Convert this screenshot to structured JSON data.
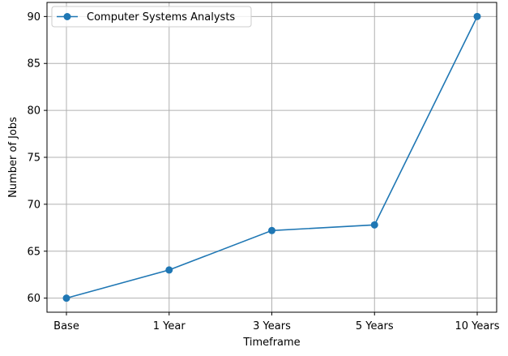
{
  "chart_data": {
    "type": "line",
    "title": "",
    "xlabel": "Timeframe",
    "ylabel": "Number of Jobs",
    "categories": [
      "Base",
      "1 Year",
      "3 Years",
      "5 Years",
      "10 Years"
    ],
    "series": [
      {
        "name": "Computer Systems Analysts",
        "values": [
          60,
          63,
          67.2,
          67.8,
          90
        ],
        "color": "#1f77b4",
        "marker": "circle"
      }
    ],
    "ylim": [
      58.5,
      91.5
    ],
    "yticks": [
      60,
      65,
      70,
      75,
      80,
      85,
      90
    ],
    "grid": true,
    "legend": "upper-left"
  }
}
